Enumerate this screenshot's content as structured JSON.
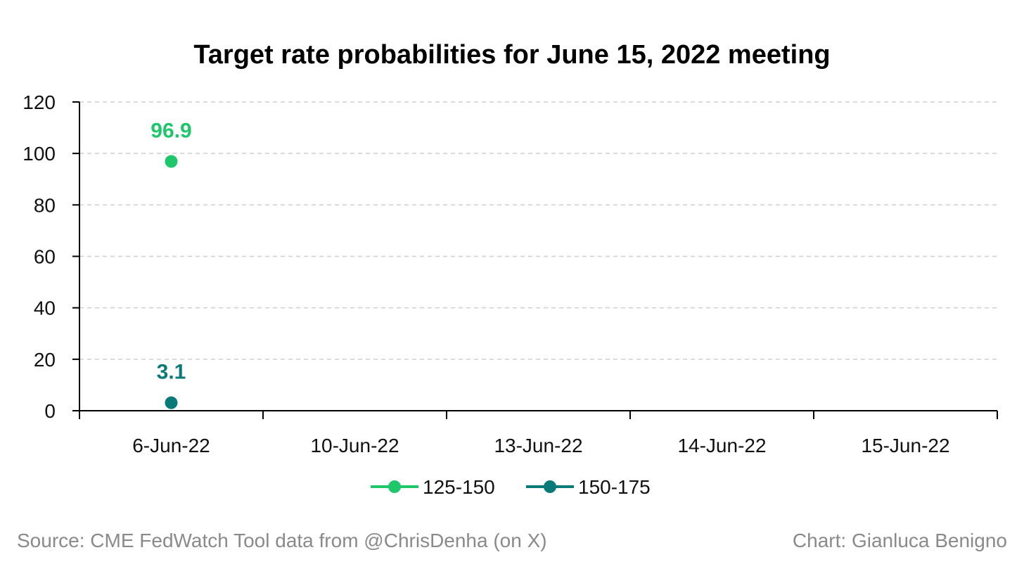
{
  "chart_data": {
    "type": "scatter",
    "title": "Target rate probabilities for June 15, 2022 meeting",
    "categories": [
      "6-Jun-22",
      "10-Jun-22",
      "13-Jun-22",
      "14-Jun-22",
      "15-Jun-22"
    ],
    "series": [
      {
        "name": "125-150",
        "color": "#1dc76a",
        "values": [
          96.9,
          null,
          null,
          null,
          null
        ],
        "labels": [
          "96.9"
        ]
      },
      {
        "name": "150-175",
        "color": "#0a7a78",
        "values": [
          3.1,
          null,
          null,
          null,
          null
        ],
        "labels": [
          "3.1"
        ]
      }
    ],
    "ylim": [
      0,
      120
    ],
    "yticks": [
      "0",
      "20",
      "40",
      "60",
      "80",
      "100",
      "120"
    ],
    "grid": true,
    "legend": "bottom"
  },
  "footer": {
    "source": "Source: CME FedWatch Tool data from @ChrisDenha (on X)",
    "credit": "Chart: Gianluca Benigno"
  }
}
